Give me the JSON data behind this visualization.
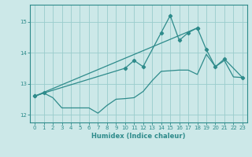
{
  "xlabel": "Humidex (Indice chaleur)",
  "x_values": [
    0,
    1,
    2,
    3,
    4,
    5,
    6,
    7,
    8,
    9,
    10,
    11,
    12,
    13,
    14,
    15,
    16,
    17,
    18,
    19,
    20,
    21,
    22,
    23
  ],
  "line1_y": [
    12.6,
    12.7,
    12.55,
    12.22,
    12.22,
    12.22,
    12.22,
    12.05,
    12.3,
    12.5,
    12.52,
    12.55,
    12.75,
    13.1,
    13.4,
    13.42,
    13.44,
    13.44,
    13.3,
    13.95,
    13.55,
    13.75,
    13.22,
    13.2
  ],
  "line2_x": [
    0,
    1,
    10,
    11,
    12,
    14,
    15,
    16,
    17,
    18
  ],
  "line2_y": [
    12.6,
    12.7,
    13.5,
    13.75,
    13.55,
    14.65,
    15.2,
    14.4,
    14.65,
    14.8
  ],
  "line3_x": [
    0,
    18,
    19,
    20,
    21,
    23
  ],
  "line3_y": [
    12.6,
    14.8,
    14.1,
    13.55,
    13.8,
    13.2
  ],
  "line_color": "#2e8b8b",
  "bg_color": "#cce8e8",
  "grid_color": "#99cccc",
  "ylim": [
    11.75,
    15.55
  ],
  "xlim": [
    -0.5,
    23.5
  ],
  "yticks": [
    12,
    13,
    14,
    15
  ],
  "xticks": [
    0,
    1,
    2,
    3,
    4,
    5,
    6,
    7,
    8,
    9,
    10,
    11,
    12,
    13,
    14,
    15,
    16,
    17,
    18,
    19,
    20,
    21,
    22,
    23
  ]
}
